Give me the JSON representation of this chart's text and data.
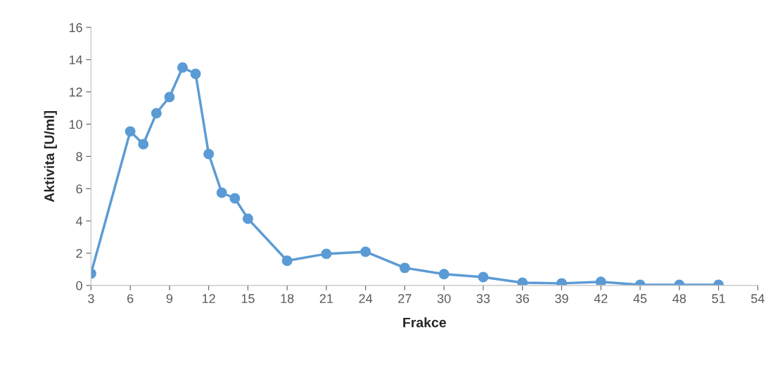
{
  "chart_data": {
    "type": "line",
    "xlabel": "Frakce",
    "ylabel": "Aktivita [U/ml]",
    "x": [
      3,
      6,
      7,
      8,
      9,
      10,
      11,
      12,
      13,
      14,
      15,
      18,
      21,
      24,
      27,
      30,
      33,
      36,
      39,
      42,
      45,
      48,
      51
    ],
    "series": [
      {
        "color": "#5b9bd5",
        "values": [
          0.74,
          9.55,
          8.76,
          10.68,
          11.68,
          13.51,
          13.12,
          8.15,
          5.75,
          5.4,
          4.14,
          1.53,
          1.96,
          2.09,
          1.09,
          0.7,
          0.52,
          0.17,
          0.13,
          0.22,
          0.04,
          0.04,
          0.04
        ]
      }
    ],
    "xlim": [
      3,
      54
    ],
    "xticks": [
      3,
      6,
      9,
      12,
      15,
      18,
      21,
      24,
      27,
      30,
      33,
      36,
      39,
      42,
      45,
      48,
      51,
      54
    ],
    "ylim": [
      0,
      16
    ],
    "yticks": [
      0,
      2,
      4,
      6,
      8,
      10,
      12,
      14,
      16
    ],
    "grid": false,
    "marker": "circle",
    "line_style": "solid"
  }
}
